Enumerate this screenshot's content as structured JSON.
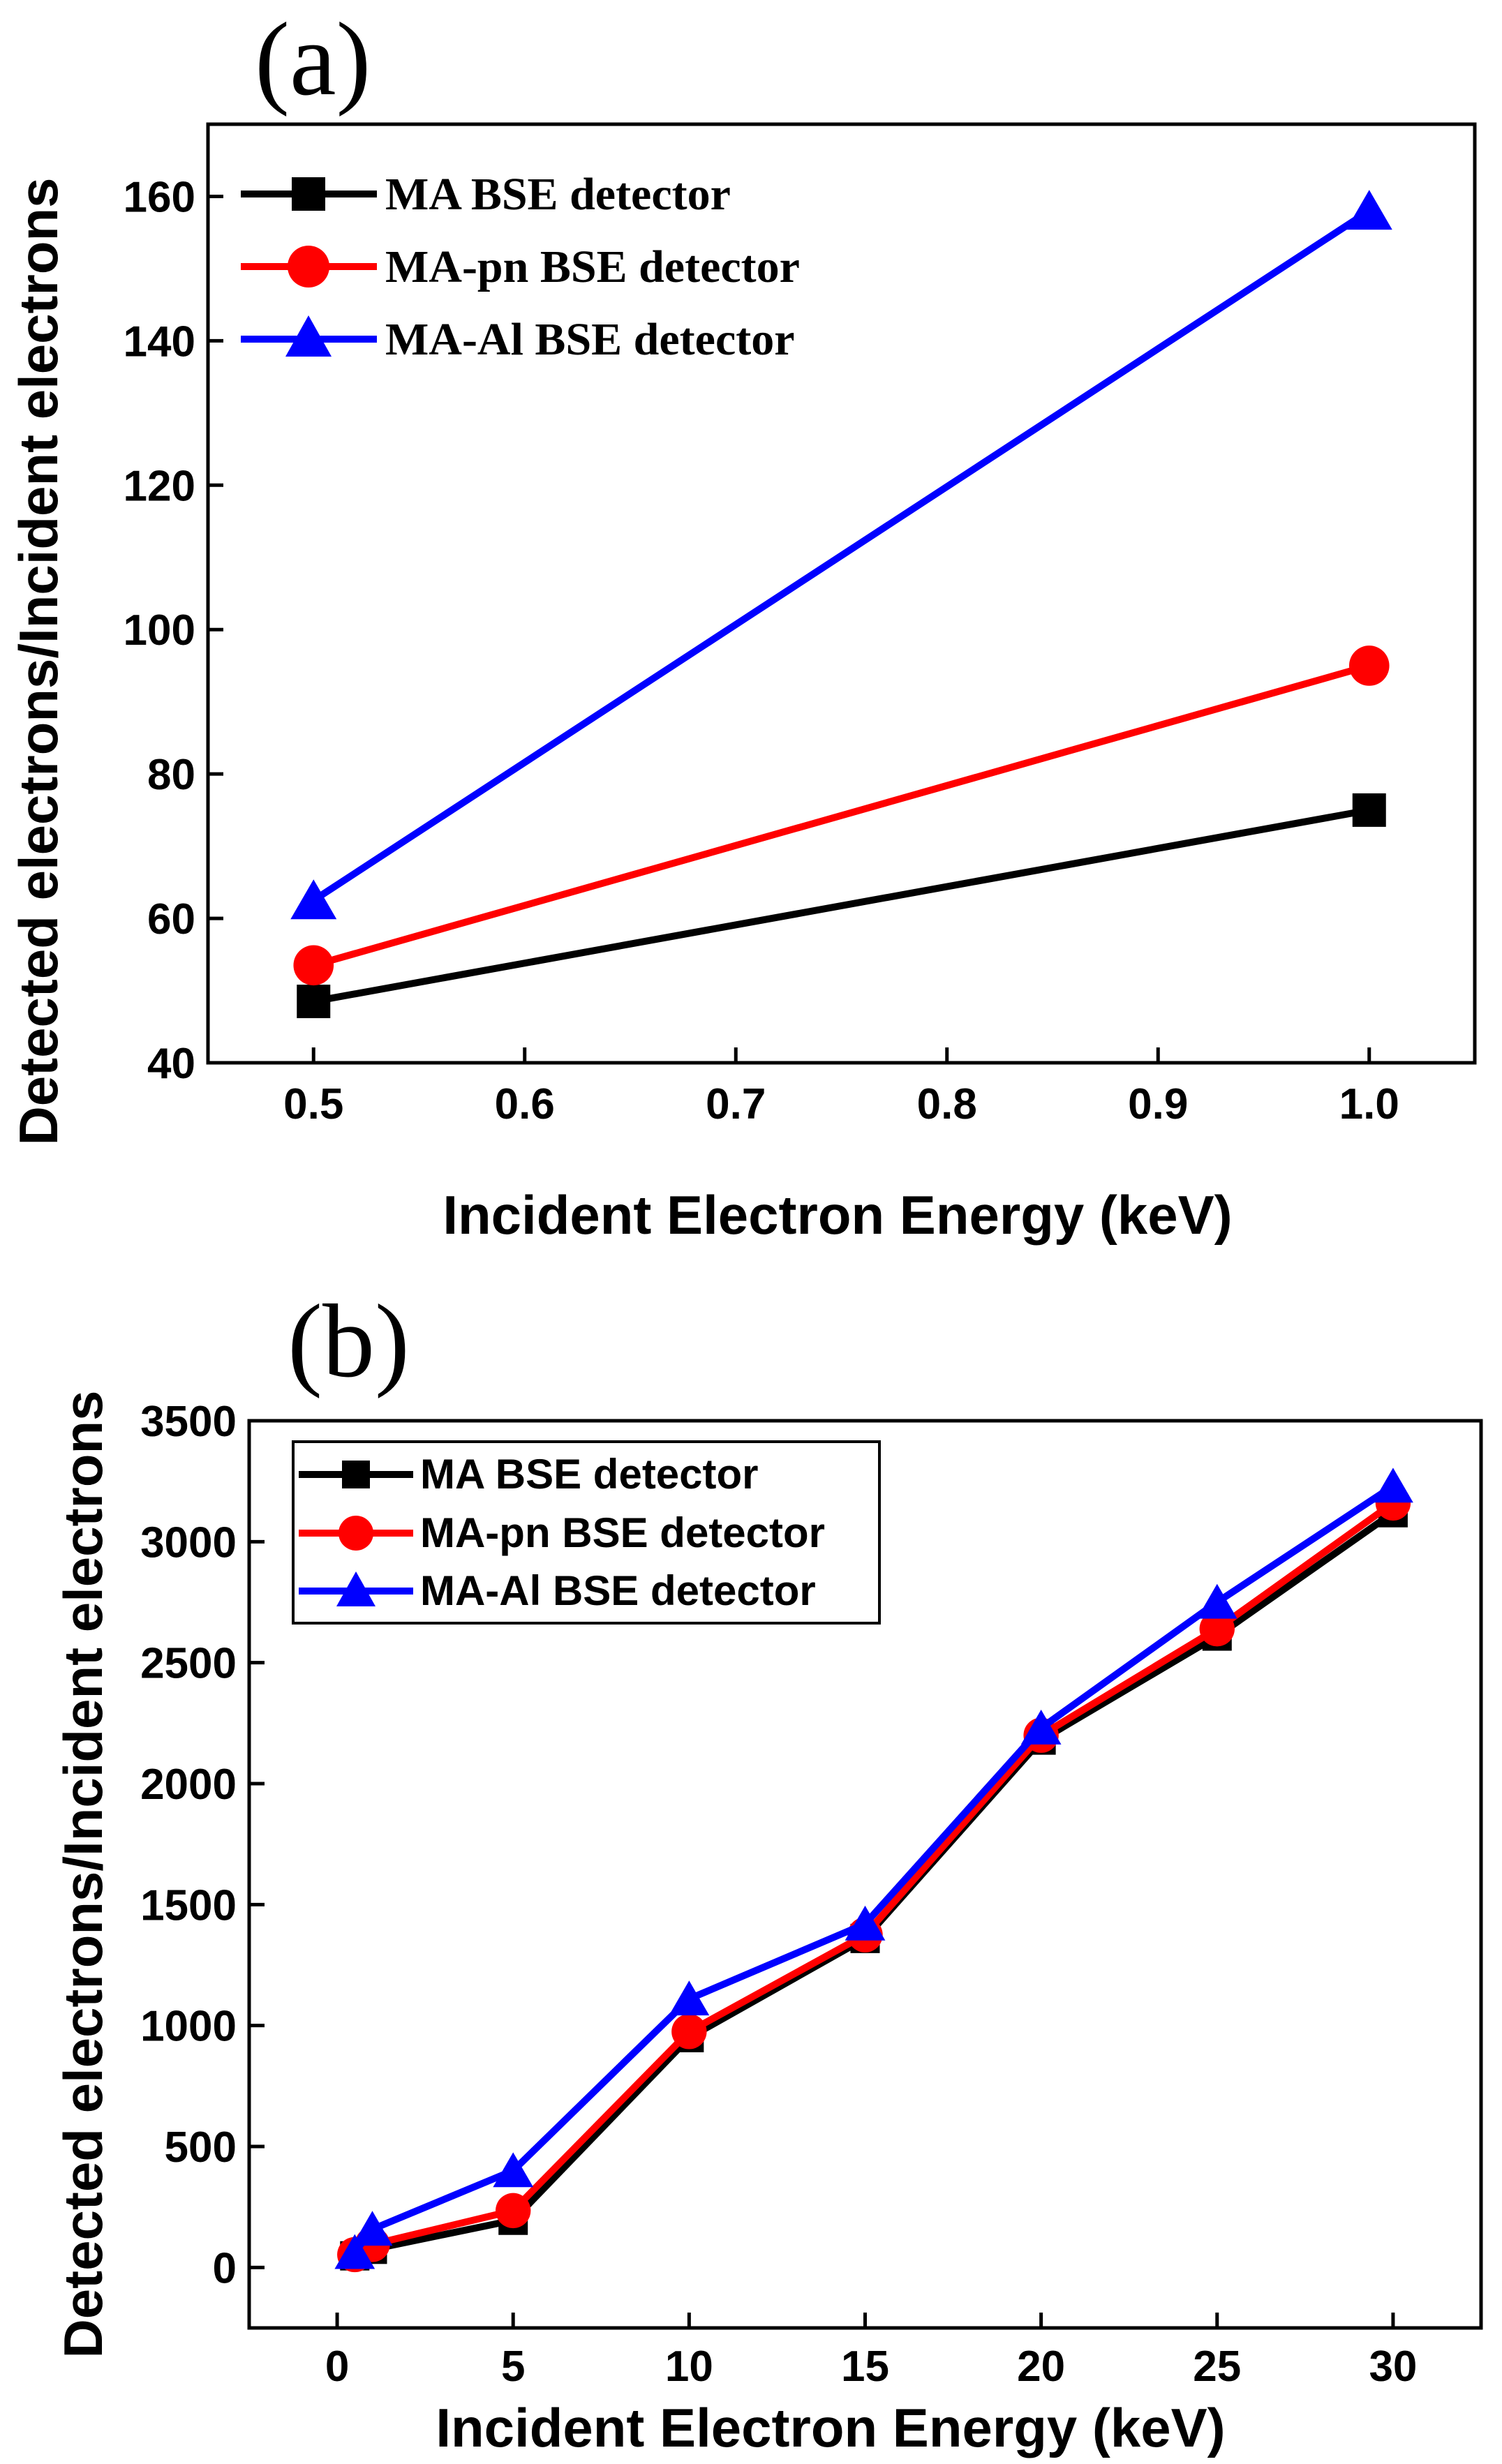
{
  "chart_data": [
    {
      "type": "line",
      "panel_label": "(a)",
      "xlabel": "Incident Electron Energy (keV)",
      "ylabel": "Detected electrons/Incident electrons",
      "xlim": [
        0.45,
        1.05
      ],
      "ylim": [
        40,
        170
      ],
      "xticks": [
        0.5,
        0.6,
        0.7,
        0.8,
        0.9,
        1.0
      ],
      "xtick_labels": [
        "0.5",
        "0.6",
        "0.7",
        "0.8",
        "0.9",
        "1.0"
      ],
      "yticks": [
        40,
        60,
        80,
        100,
        120,
        140,
        160
      ],
      "ytick_labels": [
        "40",
        "60",
        "80",
        "100",
        "120",
        "140",
        "160"
      ],
      "legend_position": "top-left",
      "series": [
        {
          "name": "MA BSE detector",
          "color": "#000000",
          "marker": "square",
          "x": [
            0.5,
            1.0
          ],
          "y": [
            48.5,
            75
          ]
        },
        {
          "name": "MA-pn BSE detector",
          "color": "#ff0000",
          "marker": "circle",
          "x": [
            0.5,
            1.0
          ],
          "y": [
            53.5,
            95
          ]
        },
        {
          "name": "MA-Al BSE detector",
          "color": "#0000ff",
          "marker": "triangle",
          "x": [
            0.5,
            1.0
          ],
          "y": [
            62.5,
            158
          ]
        }
      ]
    },
    {
      "type": "line",
      "panel_label": "(b)",
      "xlabel": "Incident Electron Energy (keV)",
      "ylabel": "Detected electrons/Incident electrons",
      "xlim": [
        -2.5,
        32.5
      ],
      "ylim": [
        -250,
        3500
      ],
      "xticks": [
        0,
        5,
        10,
        15,
        20,
        25,
        30
      ],
      "xtick_labels": [
        "0",
        "5",
        "10",
        "15",
        "20",
        "25",
        "30"
      ],
      "yticks": [
        0,
        500,
        1000,
        1500,
        2000,
        2500,
        3000,
        3500
      ],
      "ytick_labels": [
        "0",
        "500",
        "1000",
        "1500",
        "2000",
        "2500",
        "3000",
        "3500"
      ],
      "legend_position": "top-left",
      "series": [
        {
          "name": "MA BSE detector",
          "color": "#000000",
          "marker": "square",
          "x": [
            0.5,
            1,
            5,
            10,
            15,
            20,
            25,
            30
          ],
          "y": [
            48,
            75,
            195,
            950,
            1360,
            2180,
            2610,
            3120
          ]
        },
        {
          "name": "MA-pn BSE detector",
          "color": "#ff0000",
          "marker": "circle",
          "x": [
            0.5,
            1,
            5,
            10,
            15,
            20,
            25,
            30
          ],
          "y": [
            53,
            95,
            235,
            975,
            1375,
            2200,
            2640,
            3160
          ]
        },
        {
          "name": "MA-Al BSE detector",
          "color": "#0000ff",
          "marker": "triangle",
          "x": [
            0.5,
            1,
            5,
            10,
            15,
            20,
            25,
            30
          ],
          "y": [
            62,
            158,
            400,
            1110,
            1420,
            2230,
            2750,
            3230
          ]
        }
      ]
    }
  ]
}
